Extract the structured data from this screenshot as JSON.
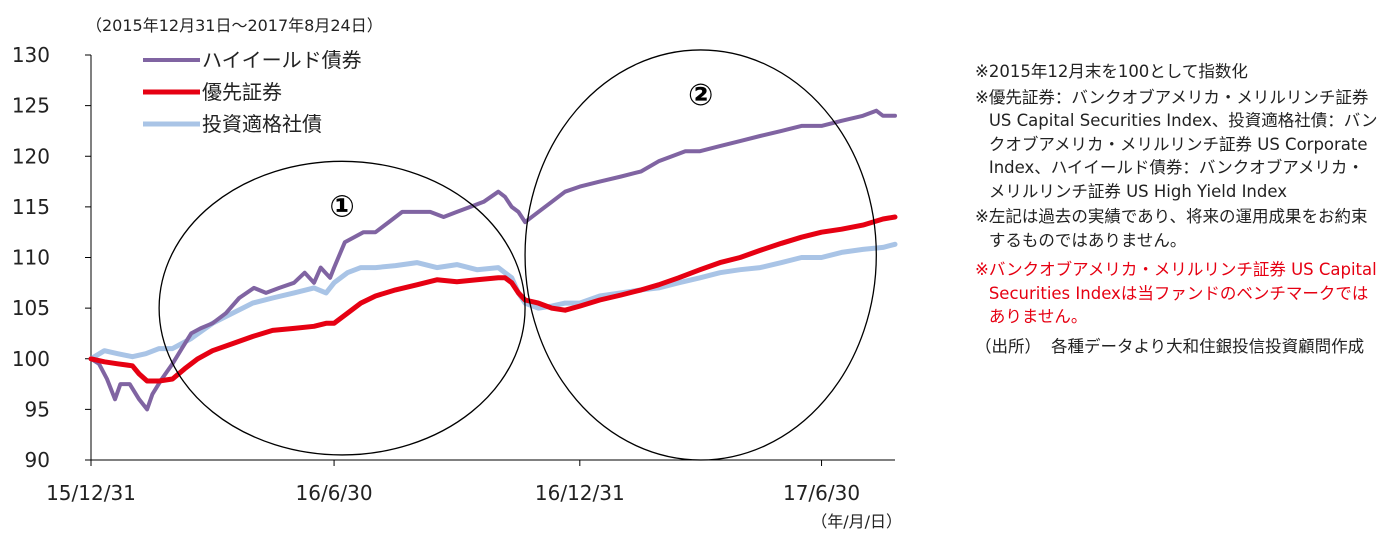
{
  "period_label": "（2015年12月31日～2017年8月24日）",
  "x_unit_label": "（年/月/日）",
  "chart_data": {
    "type": "line",
    "title": "",
    "xlabel": "",
    "ylabel": "",
    "ylim": [
      90,
      130
    ],
    "yticks": [
      90,
      95,
      100,
      105,
      110,
      115,
      120,
      125,
      130
    ],
    "x_range": [
      "2015-12-31",
      "2017-08-24"
    ],
    "xticks": [
      "15/12/31",
      "16/6/30",
      "16/12/31",
      "17/6/30"
    ],
    "legend_position": "top-left",
    "series": [
      {
        "name": "ハイイールド債券",
        "color": "#8064a2",
        "dates": [
          "2015-12-31",
          "2016-01-06",
          "2016-01-12",
          "2016-01-18",
          "2016-01-22",
          "2016-01-29",
          "2016-02-05",
          "2016-02-11",
          "2016-02-15",
          "2016-02-22",
          "2016-03-01",
          "2016-03-08",
          "2016-03-15",
          "2016-03-22",
          "2016-03-31",
          "2016-04-10",
          "2016-04-20",
          "2016-05-01",
          "2016-05-10",
          "2016-05-20",
          "2016-05-31",
          "2016-06-08",
          "2016-06-15",
          "2016-06-20",
          "2016-06-27",
          "2016-06-30",
          "2016-07-08",
          "2016-07-15",
          "2016-07-22",
          "2016-07-31",
          "2016-08-10",
          "2016-08-20",
          "2016-08-31",
          "2016-09-10",
          "2016-09-20",
          "2016-09-30",
          "2016-10-10",
          "2016-10-20",
          "2016-10-31",
          "2016-11-05",
          "2016-11-10",
          "2016-11-15",
          "2016-11-20",
          "2016-11-30",
          "2016-12-10",
          "2016-12-20",
          "2016-12-31",
          "2017-01-15",
          "2017-01-31",
          "2017-02-15",
          "2017-02-28",
          "2017-03-10",
          "2017-03-20",
          "2017-03-31",
          "2017-04-15",
          "2017-04-30",
          "2017-05-15",
          "2017-05-31",
          "2017-06-15",
          "2017-06-30",
          "2017-07-15",
          "2017-07-31",
          "2017-08-10",
          "2017-08-15",
          "2017-08-24"
        ],
        "values": [
          100.0,
          99.5,
          98.0,
          96.0,
          97.5,
          97.5,
          96.0,
          95.0,
          96.5,
          98.0,
          99.5,
          101.0,
          102.5,
          103.0,
          103.5,
          104.5,
          106.0,
          107.0,
          106.5,
          107.0,
          107.5,
          108.5,
          107.5,
          109.0,
          108.0,
          109.0,
          111.5,
          112.0,
          112.5,
          112.5,
          113.5,
          114.5,
          114.5,
          114.5,
          114.0,
          114.5,
          115.0,
          115.5,
          116.5,
          116.0,
          115.0,
          114.5,
          113.5,
          114.5,
          115.5,
          116.5,
          117.0,
          117.5,
          118.0,
          118.5,
          119.5,
          120.0,
          120.5,
          120.5,
          121.0,
          121.5,
          122.0,
          122.5,
          123.0,
          123.0,
          123.5,
          124.0,
          124.5,
          124.0,
          124.0
        ]
      },
      {
        "name": "優先証券",
        "color": "#e60012",
        "dates": [
          "2015-12-31",
          "2016-01-10",
          "2016-01-20",
          "2016-01-31",
          "2016-02-05",
          "2016-02-11",
          "2016-02-20",
          "2016-03-01",
          "2016-03-10",
          "2016-03-20",
          "2016-03-31",
          "2016-04-15",
          "2016-04-30",
          "2016-05-15",
          "2016-05-31",
          "2016-06-15",
          "2016-06-24",
          "2016-06-30",
          "2016-07-10",
          "2016-07-20",
          "2016-07-31",
          "2016-08-15",
          "2016-08-31",
          "2016-09-15",
          "2016-09-30",
          "2016-10-15",
          "2016-10-31",
          "2016-11-05",
          "2016-11-10",
          "2016-11-15",
          "2016-11-20",
          "2016-11-30",
          "2016-12-10",
          "2016-12-20",
          "2016-12-31",
          "2017-01-15",
          "2017-01-31",
          "2017-02-15",
          "2017-02-28",
          "2017-03-15",
          "2017-03-31",
          "2017-04-15",
          "2017-04-30",
          "2017-05-15",
          "2017-05-31",
          "2017-06-15",
          "2017-06-30",
          "2017-07-15",
          "2017-07-31",
          "2017-08-15",
          "2017-08-24"
        ],
        "values": [
          100.0,
          99.7,
          99.5,
          99.3,
          98.5,
          97.8,
          97.8,
          98.0,
          99.0,
          100.0,
          100.8,
          101.5,
          102.2,
          102.8,
          103.0,
          103.2,
          103.5,
          103.5,
          104.5,
          105.5,
          106.2,
          106.8,
          107.3,
          107.8,
          107.6,
          107.8,
          108.0,
          108.0,
          107.5,
          106.5,
          105.8,
          105.5,
          105.0,
          104.8,
          105.2,
          105.8,
          106.3,
          106.8,
          107.3,
          108.0,
          108.8,
          109.5,
          110.0,
          110.7,
          111.4,
          112.0,
          112.5,
          112.8,
          113.2,
          113.8,
          114.0
        ]
      },
      {
        "name": "投資適格社債",
        "color": "#a9c4e6",
        "dates": [
          "2015-12-31",
          "2016-01-10",
          "2016-01-20",
          "2016-01-31",
          "2016-02-10",
          "2016-02-20",
          "2016-03-01",
          "2016-03-15",
          "2016-03-31",
          "2016-04-15",
          "2016-04-30",
          "2016-05-15",
          "2016-05-31",
          "2016-06-15",
          "2016-06-24",
          "2016-06-30",
          "2016-07-10",
          "2016-07-20",
          "2016-07-31",
          "2016-08-15",
          "2016-08-31",
          "2016-09-15",
          "2016-09-30",
          "2016-10-15",
          "2016-10-31",
          "2016-11-05",
          "2016-11-10",
          "2016-11-15",
          "2016-11-20",
          "2016-11-30",
          "2016-12-10",
          "2016-12-20",
          "2016-12-31",
          "2017-01-15",
          "2017-01-31",
          "2017-02-15",
          "2017-02-28",
          "2017-03-15",
          "2017-03-31",
          "2017-04-15",
          "2017-04-30",
          "2017-05-15",
          "2017-05-31",
          "2017-06-15",
          "2017-06-30",
          "2017-07-15",
          "2017-07-31",
          "2017-08-15",
          "2017-08-24"
        ],
        "values": [
          100.0,
          100.8,
          100.5,
          100.2,
          100.5,
          101.0,
          101.0,
          102.0,
          103.5,
          104.5,
          105.5,
          106.0,
          106.5,
          107.0,
          106.5,
          107.5,
          108.5,
          109.0,
          109.0,
          109.2,
          109.5,
          109.0,
          109.3,
          108.8,
          109.0,
          108.5,
          108.0,
          106.5,
          105.5,
          105.0,
          105.2,
          105.5,
          105.5,
          106.2,
          106.5,
          106.8,
          107.0,
          107.5,
          108.0,
          108.5,
          108.8,
          109.0,
          109.5,
          110.0,
          110.0,
          110.5,
          110.8,
          111.0,
          111.3
        ]
      }
    ],
    "annotations": [
      {
        "label": "①",
        "x_range": [
          "2016-02-20",
          "2016-11-20"
        ],
        "y_range": [
          90.5,
          119.5
        ]
      },
      {
        "label": "②",
        "x_range": [
          "2016-11-20",
          "2017-08-10"
        ],
        "y_range": [
          90.0,
          130.5
        ]
      }
    ]
  },
  "notes": [
    {
      "mark": "※",
      "text": "2015年12月末を100として指数化",
      "style": "normal"
    },
    {
      "mark": "※",
      "text": "優先証券：バンクオブアメリカ・メリルリンチ証券 US Capital Securities Index、投資適格社債：バンクオブアメリカ・メリルリンチ証券 US Corporate Index、ハイイールド債券：バンクオブアメリカ・メリルリンチ証券 US High Yield Index",
      "style": "normal"
    },
    {
      "mark": "※",
      "text": "左記は過去の実績であり、将来の運用成果をお約束するものではありません。",
      "style": "normal"
    },
    {
      "mark": "※",
      "text": "バンクオブアメリカ・メリルリンチ証券 US Capital Securities Indexは当ファンドのベンチマークではありません。",
      "style": "red"
    },
    {
      "mark": "（出所）",
      "text": "各種データより大和住銀投信投資顧問作成",
      "style": "src"
    }
  ]
}
